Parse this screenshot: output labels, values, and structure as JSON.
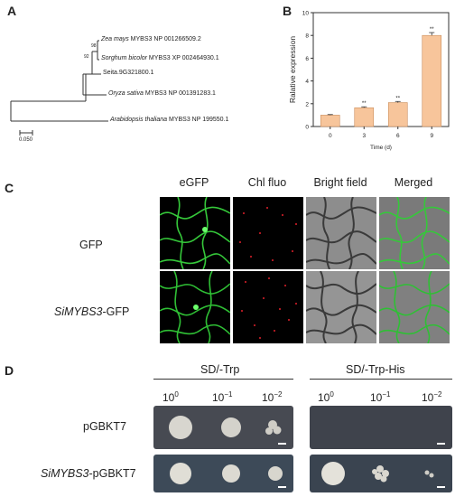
{
  "panels": {
    "A": "A",
    "B": "B",
    "C": "C",
    "D": "D"
  },
  "tree": {
    "taxa": [
      {
        "species": "Zea mays",
        "rest": " MYBS3 NP 001266509.2"
      },
      {
        "species": "Sorghum bicolor",
        "rest": " MYBS3 XP 002464930.1"
      },
      {
        "species": "",
        "rest": "Seita.9G321800.1"
      },
      {
        "species": "Oryza sativa",
        "rest": " MYBS3 NP 001391283.1"
      },
      {
        "species": "Arabidopsis thaliana",
        "rest": " MYBS3 NP 199550.1"
      }
    ],
    "bootstrap": [
      "98",
      "92"
    ],
    "scale": "0.050"
  },
  "chart_data": {
    "type": "bar",
    "categories": [
      "0",
      "3",
      "6",
      "9"
    ],
    "values": [
      1.0,
      1.65,
      2.1,
      8.0
    ],
    "errors": [
      0.05,
      0.08,
      0.1,
      0.25
    ],
    "significance": [
      "",
      "**",
      "**",
      "**"
    ],
    "xlabel": "Time (d)",
    "ylabel": "Ralative expression",
    "ylim": [
      0,
      10
    ],
    "yticks": [
      0,
      2,
      4,
      6,
      8,
      10
    ],
    "bar_color": "#f7c59b"
  },
  "microscopy": {
    "columns": [
      "eGFP",
      "Chl fluo",
      "Bright field",
      "Merged"
    ],
    "rows": [
      {
        "label_italic": "",
        "label_rest": "GFP"
      },
      {
        "label_italic": "SiMYBS3",
        "label_rest": "-GFP"
      }
    ]
  },
  "yeast": {
    "media": [
      "SD/-Trp",
      "SD/-Trp-His"
    ],
    "dilutions": [
      {
        "base": "10",
        "exp": "0"
      },
      {
        "base": "10",
        "exp": "−1"
      },
      {
        "base": "10",
        "exp": "−2"
      }
    ],
    "rows": [
      {
        "label_italic": "",
        "label_rest": "pGBKT7"
      },
      {
        "label_italic": "SiMYBS3",
        "label_rest": "-pGBKT7"
      }
    ]
  }
}
